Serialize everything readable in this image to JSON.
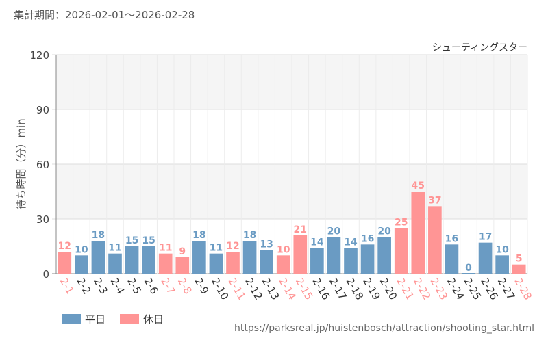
{
  "header": {
    "period_label": "集計期間：2026-02-01～2026-02-28"
  },
  "legend": {
    "weekday_label": "平日",
    "holiday_label": "休日"
  },
  "source_url": "https://parksreal.jp/huistenbosch/attraction/shooting_star.html",
  "colors": {
    "weekday": "#6a9bc3",
    "holiday": "#ff9595",
    "band": "#f5f5f5",
    "grid": "#dddddd"
  },
  "chart_data": {
    "type": "bar",
    "title": "シューティングスター",
    "ylabel": "待ち時間（分）min",
    "ylim": [
      0,
      120
    ],
    "yticks": [
      0,
      30,
      60,
      90,
      120
    ],
    "categories": [
      "2-1",
      "2-2",
      "2-3",
      "2-4",
      "2-5",
      "2-6",
      "2-7",
      "2-8",
      "2-9",
      "2-10",
      "2-11",
      "2-12",
      "2-13",
      "2-14",
      "2-15",
      "2-16",
      "2-17",
      "2-18",
      "2-19",
      "2-20",
      "2-21",
      "2-22",
      "2-23",
      "2-24",
      "2-25",
      "2-26",
      "2-27",
      "2-28"
    ],
    "values": [
      12,
      10,
      18,
      11,
      15,
      15,
      11,
      9,
      18,
      11,
      12,
      18,
      13,
      10,
      21,
      14,
      20,
      14,
      16,
      20,
      25,
      45,
      37,
      16,
      0,
      17,
      10,
      5
    ],
    "day_type": [
      "休日",
      "平日",
      "平日",
      "平日",
      "平日",
      "平日",
      "休日",
      "休日",
      "平日",
      "平日",
      "休日",
      "平日",
      "平日",
      "休日",
      "休日",
      "平日",
      "平日",
      "平日",
      "平日",
      "平日",
      "休日",
      "休日",
      "休日",
      "平日",
      "平日",
      "平日",
      "平日",
      "休日"
    ],
    "grid": true,
    "legend_position": "bottom-left"
  }
}
